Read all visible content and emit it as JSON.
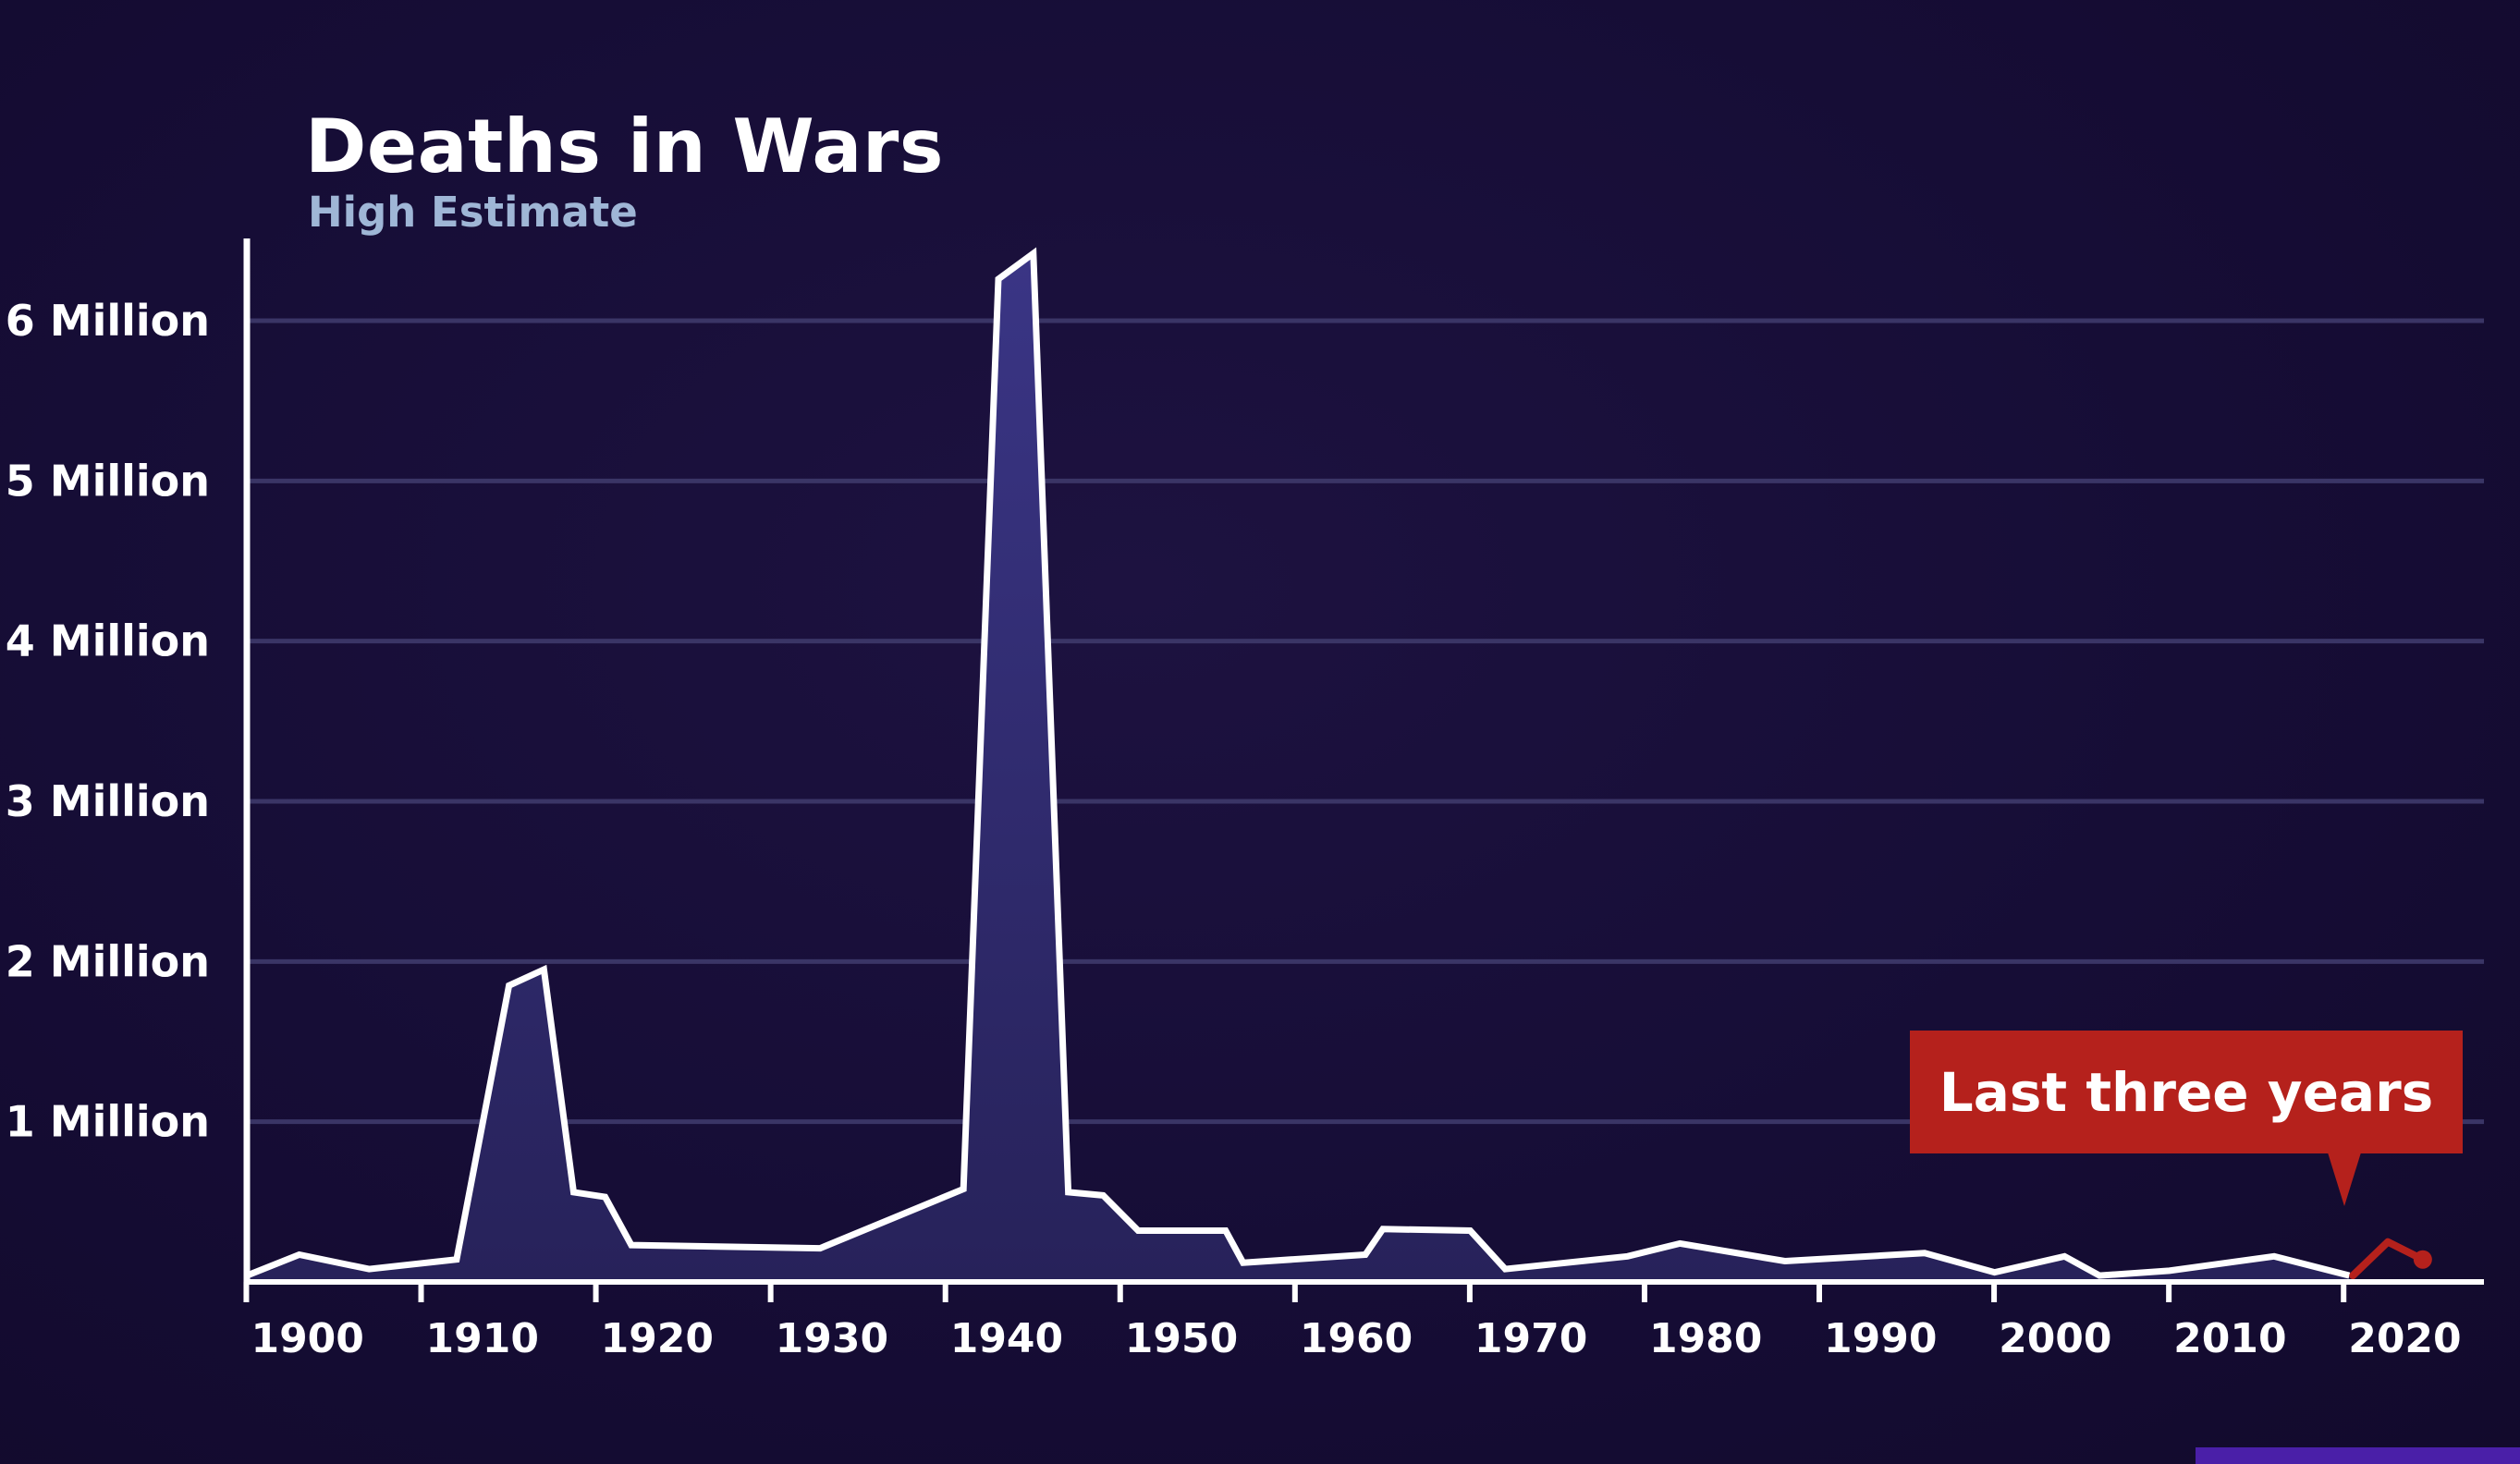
{
  "chart_data": {
    "type": "area",
    "title": "Deaths in Wars",
    "subtitle": "High Estimate",
    "xlabel": "",
    "ylabel": "",
    "xlim": [
      1899.5,
      2027.5
    ],
    "ylim": [
      0,
      6300000
    ],
    "grid": true,
    "y_ticks": [
      {
        "value": 1000000,
        "label": "1 Million"
      },
      {
        "value": 2000000,
        "label": "2 Million"
      },
      {
        "value": 3000000,
        "label": "3 Million"
      },
      {
        "value": 4000000,
        "label": "4 Million"
      },
      {
        "value": 5000000,
        "label": "5 Million"
      },
      {
        "value": 6000000,
        "label": "6 Million"
      }
    ],
    "x_ticks": [
      {
        "value": 1900,
        "label": "1900"
      },
      {
        "value": 1910,
        "label": "1910"
      },
      {
        "value": 1920,
        "label": "1920"
      },
      {
        "value": 1930,
        "label": "1930"
      },
      {
        "value": 1940,
        "label": "1940"
      },
      {
        "value": 1950,
        "label": "1950"
      },
      {
        "value": 1960,
        "label": "1960"
      },
      {
        "value": 1970,
        "label": "1970"
      },
      {
        "value": 1980,
        "label": "1980"
      },
      {
        "value": 1990,
        "label": "1990"
      },
      {
        "value": 2000,
        "label": "2000"
      },
      {
        "value": 2010,
        "label": "2010"
      },
      {
        "value": 2020,
        "label": "2020"
      }
    ],
    "series": [
      {
        "color": "#ffffff",
        "fill": "#2f2a6b",
        "points": [
          [
            1899.5,
            40000
          ],
          [
            1902.5,
            170000
          ],
          [
            1906.5,
            80000
          ],
          [
            1911.5,
            140000
          ],
          [
            1914.5,
            1850000
          ],
          [
            1916.5,
            1950000
          ],
          [
            1918.2,
            560000
          ],
          [
            1920,
            530000
          ],
          [
            1921.5,
            230000
          ],
          [
            1932.3,
            210000
          ],
          [
            1940.5,
            580000
          ],
          [
            1942.5,
            6260000
          ],
          [
            1944.5,
            6420000
          ],
          [
            1946.5,
            560000
          ],
          [
            1948.5,
            540000
          ],
          [
            1950.5,
            320000
          ],
          [
            1955.5,
            320000
          ],
          [
            1956.5,
            120000
          ],
          [
            1963.5,
            170000
          ],
          [
            1964.5,
            330000
          ],
          [
            1969.5,
            320000
          ],
          [
            1971.5,
            80000
          ],
          [
            1978.5,
            160000
          ],
          [
            1981.5,
            240000
          ],
          [
            1987.5,
            130000
          ],
          [
            1995.5,
            180000
          ],
          [
            1999.5,
            60000
          ],
          [
            2003.5,
            160000
          ],
          [
            2005.5,
            40000
          ],
          [
            2009.5,
            70000
          ],
          [
            2015.5,
            160000
          ],
          [
            2019.8,
            40000
          ]
        ]
      },
      {
        "name": "Last three years",
        "color": "#b5211c",
        "points": [
          [
            2020,
            40000
          ],
          [
            2022,
            250000
          ],
          [
            2024,
            140000
          ]
        ]
      }
    ],
    "annotations": [
      {
        "text": "Last three years",
        "x": 2022,
        "y": 250000,
        "color": "#b5211c"
      }
    ]
  },
  "colors": {
    "background": "#150c32",
    "grid": "#3a3566",
    "axis": "#ffffff",
    "subtitle": "#9fb6d6",
    "highlight": "#b5211c"
  }
}
